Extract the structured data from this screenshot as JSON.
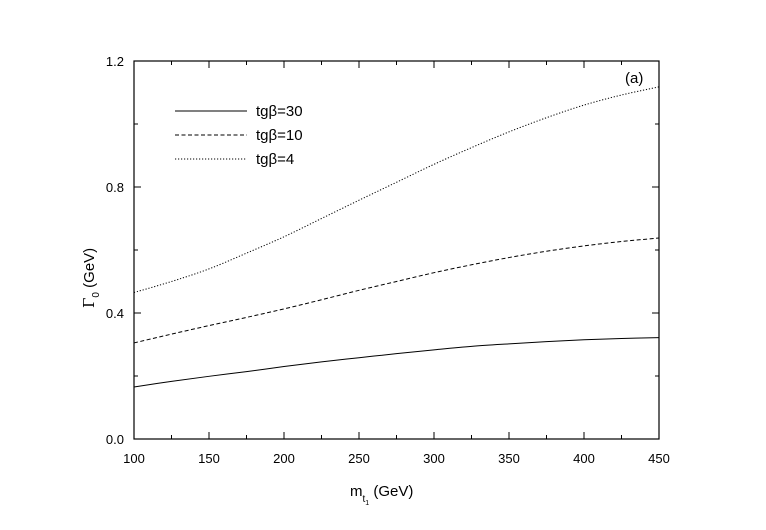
{
  "chart_data": {
    "type": "line",
    "panel_label": "(a)",
    "title": "",
    "xlabel": {
      "main": "m",
      "sub": "t",
      "subsub": "1",
      "tail": " (GeV)"
    },
    "ylabel": {
      "main": "Γ",
      "sub": "0",
      "tail": " (GeV)"
    },
    "xlim": [
      100,
      450
    ],
    "ylim": [
      0.0,
      1.2
    ],
    "xticks": [
      100,
      150,
      200,
      250,
      300,
      350,
      400,
      450
    ],
    "yticks": [
      0.0,
      0.4,
      0.8,
      1.2
    ],
    "ytick_labels": [
      "0.0",
      "0.4",
      "0.8",
      "1.2"
    ],
    "grid": false,
    "legend_position": "top-left",
    "series": [
      {
        "name": "tgβ=30",
        "style": "solid",
        "x": [
          100,
          125,
          150,
          175,
          200,
          225,
          250,
          275,
          300,
          325,
          350,
          375,
          400,
          425,
          450
        ],
        "y": [
          0.165,
          0.183,
          0.199,
          0.214,
          0.23,
          0.245,
          0.258,
          0.271,
          0.283,
          0.294,
          0.302,
          0.309,
          0.315,
          0.319,
          0.322
        ]
      },
      {
        "name": "tgβ=10",
        "style": "dashed",
        "x": [
          100,
          125,
          150,
          175,
          200,
          225,
          250,
          275,
          300,
          325,
          350,
          375,
          400,
          425,
          450
        ],
        "y": [
          0.305,
          0.333,
          0.36,
          0.386,
          0.413,
          0.442,
          0.472,
          0.5,
          0.528,
          0.553,
          0.576,
          0.596,
          0.613,
          0.627,
          0.638
        ]
      },
      {
        "name": "tgβ=4",
        "style": "dotted",
        "x": [
          100,
          125,
          150,
          175,
          200,
          225,
          250,
          275,
          300,
          325,
          350,
          375,
          400,
          425,
          450
        ],
        "y": [
          0.465,
          0.5,
          0.54,
          0.59,
          0.642,
          0.7,
          0.758,
          0.815,
          0.872,
          0.925,
          0.975,
          1.02,
          1.06,
          1.092,
          1.118
        ]
      }
    ]
  }
}
